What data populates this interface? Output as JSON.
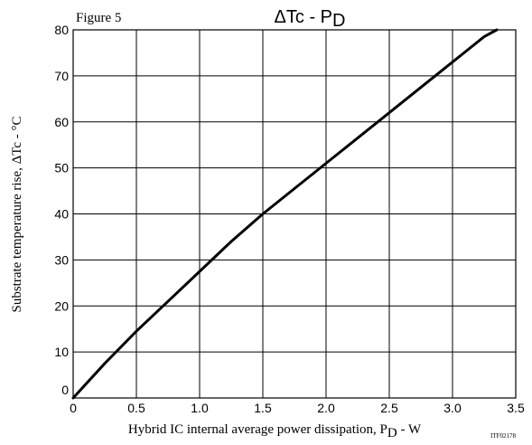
{
  "chart_data": {
    "type": "line",
    "figure_label": "Figure 5",
    "title": "ΔTc - P",
    "title_subscript": "D",
    "xlabel": "Hybrid IC internal average power dissipation,  P",
    "xlabel_subscript": "D",
    "xlabel_suffix": " - W",
    "ylabel": "Substrate temperature rise, ΔTc - °C",
    "code": "ITF02178",
    "xlim": [
      0,
      3.5
    ],
    "ylim": [
      0,
      80
    ],
    "x_ticks": [
      "0",
      "0.5",
      "1.0",
      "1.5",
      "2.0",
      "2.5",
      "3.0",
      "3.5"
    ],
    "y_ticks": [
      "0",
      "10",
      "20",
      "30",
      "40",
      "50",
      "60",
      "70",
      "80"
    ],
    "grid": true,
    "series": [
      {
        "x": [
          0,
          0.25,
          0.5,
          0.75,
          1.0,
          1.25,
          1.5,
          1.75,
          2.0,
          2.25,
          2.5,
          2.75,
          3.0,
          3.25,
          3.35
        ],
        "y": [
          0,
          7.5,
          14.5,
          21,
          27.5,
          34,
          40,
          45.5,
          51,
          56.5,
          62,
          67.5,
          73,
          78.5,
          80
        ],
        "color": "#000000"
      }
    ]
  }
}
